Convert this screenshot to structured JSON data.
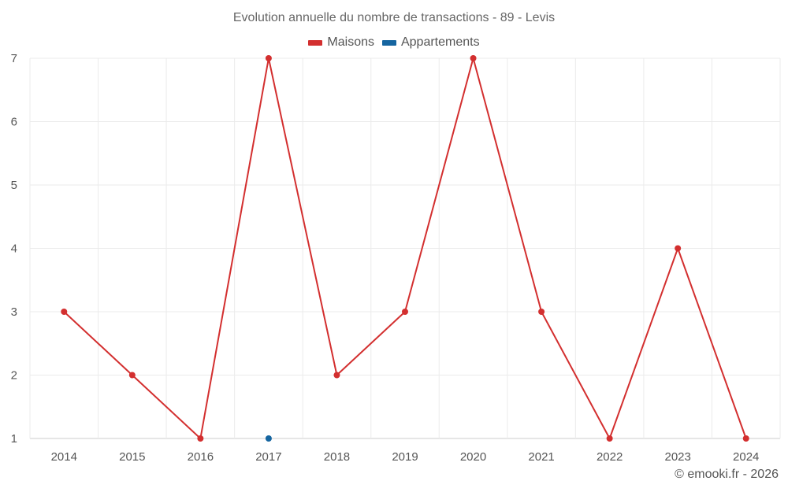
{
  "chart_data": {
    "type": "line",
    "title": "Evolution annuelle du nombre de transactions - 89 - Levis",
    "xlabel": "",
    "ylabel": "",
    "categories": [
      "2014",
      "2015",
      "2016",
      "2017",
      "2018",
      "2019",
      "2020",
      "2021",
      "2022",
      "2023",
      "2024"
    ],
    "ylim": [
      1,
      7
    ],
    "yticks": [
      1,
      2,
      3,
      4,
      5,
      6,
      7
    ],
    "grid": true,
    "legend_position": "top-center",
    "series": [
      {
        "name": "Maisons",
        "color": "#d32f2f",
        "values": [
          3,
          2,
          1,
          7,
          2,
          3,
          7,
          3,
          1,
          4,
          1
        ]
      },
      {
        "name": "Appartements",
        "color": "#1565a0",
        "values": [
          null,
          null,
          null,
          1,
          null,
          null,
          null,
          null,
          null,
          null,
          null
        ]
      }
    ]
  },
  "credit": "© emooki.fr - 2026"
}
